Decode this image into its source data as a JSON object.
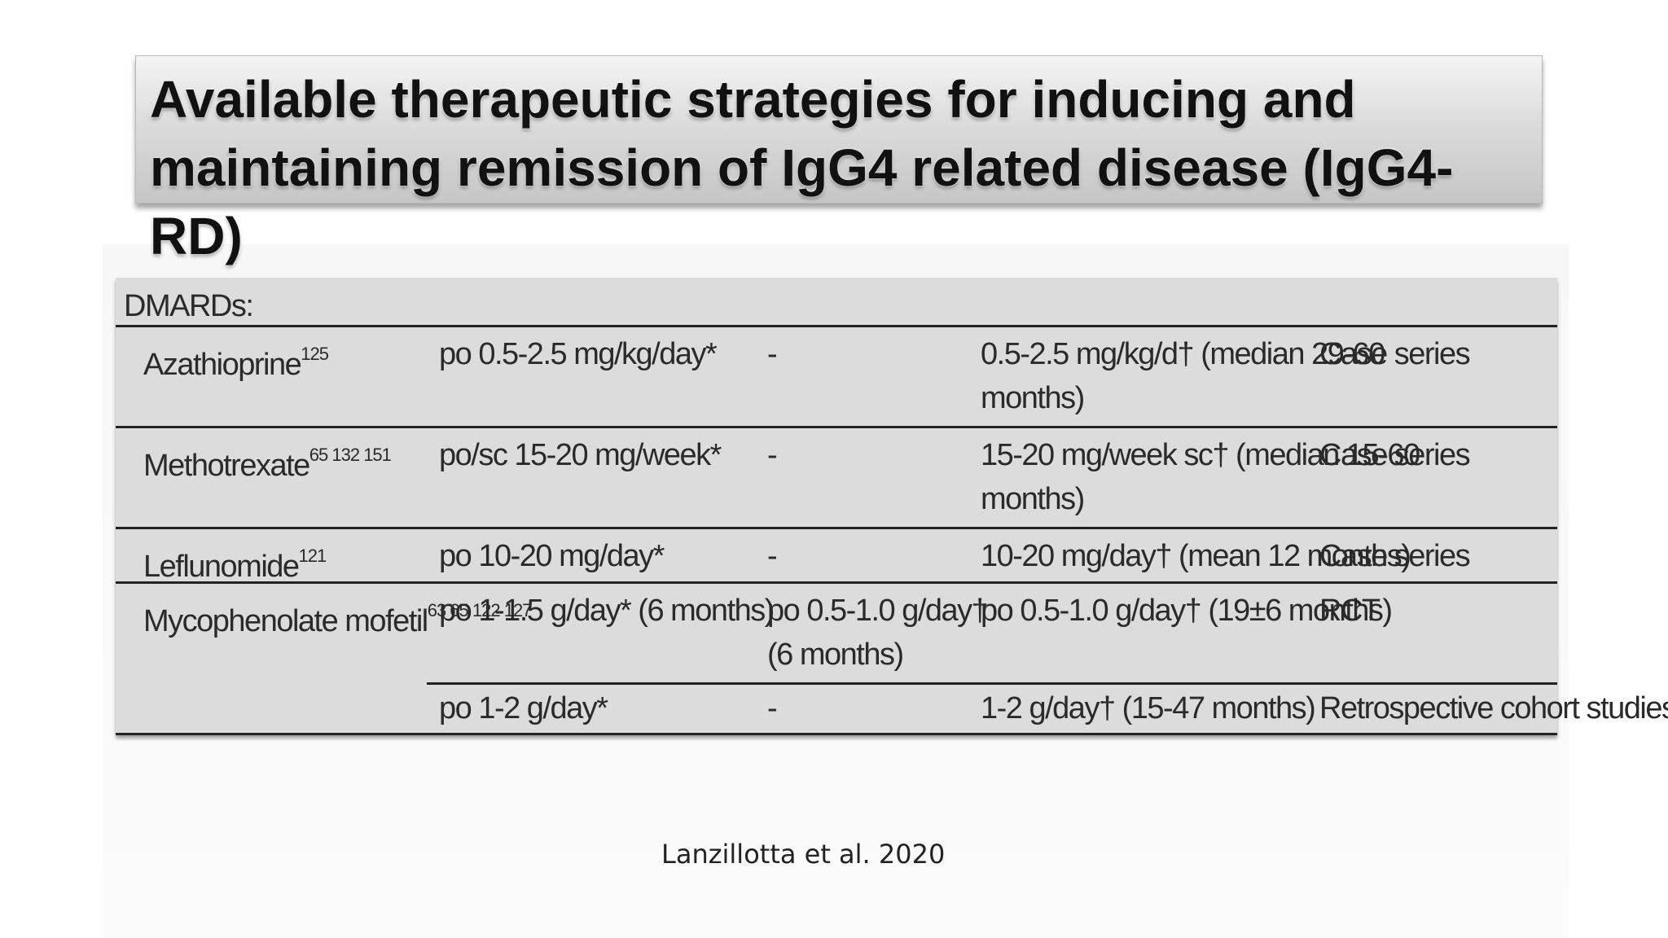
{
  "title": "Available therapeutic strategies for inducing and maintaining remission of IgG4 related disease (IgG4-RD)",
  "table": {
    "section_label": "DMARDs:",
    "rows": [
      {
        "drug": "Azathioprine",
        "ref": "125",
        "induction": "po 0.5-2.5 mg/kg/day*",
        "middle": "-",
        "maintenance_line1": "0.5-2.5 mg/kg/d† (median 29-60",
        "maintenance_line2": "months)",
        "evidence": "Case series"
      },
      {
        "drug": "Methotrexate",
        "ref": "65 132 151",
        "induction": "po/sc 15-20 mg/week*",
        "middle": "-",
        "maintenance_line1": "15-20 mg/week sc† (median 15-60",
        "maintenance_line2": "months)",
        "evidence": "Case series"
      },
      {
        "drug": "Leflunomide",
        "ref": "121",
        "induction": "po 10-20 mg/day*",
        "middle": "-",
        "maintenance_line1": "10-20 mg/day† (mean 12 months)",
        "evidence": "Case series"
      },
      {
        "drug": "Mycophenolate mofetil",
        "ref": "63 65 122 127",
        "induction": "po 1-1.5 g/day* (6 months)",
        "middle_line1": "po 0.5-1.0 g/day†",
        "middle_line2": "(6 months)",
        "maintenance_line1": "po 0.5-1.0 g/day† (19±6 months)",
        "evidence": "RCT"
      },
      {
        "induction": "po 1-2 g/day*",
        "middle": "-",
        "maintenance_line1": "1-2 g/day† (15-47 months)",
        "evidence": "Retrospective cohort studies"
      }
    ]
  },
  "citation": "Lanzillotta et al. 2020"
}
